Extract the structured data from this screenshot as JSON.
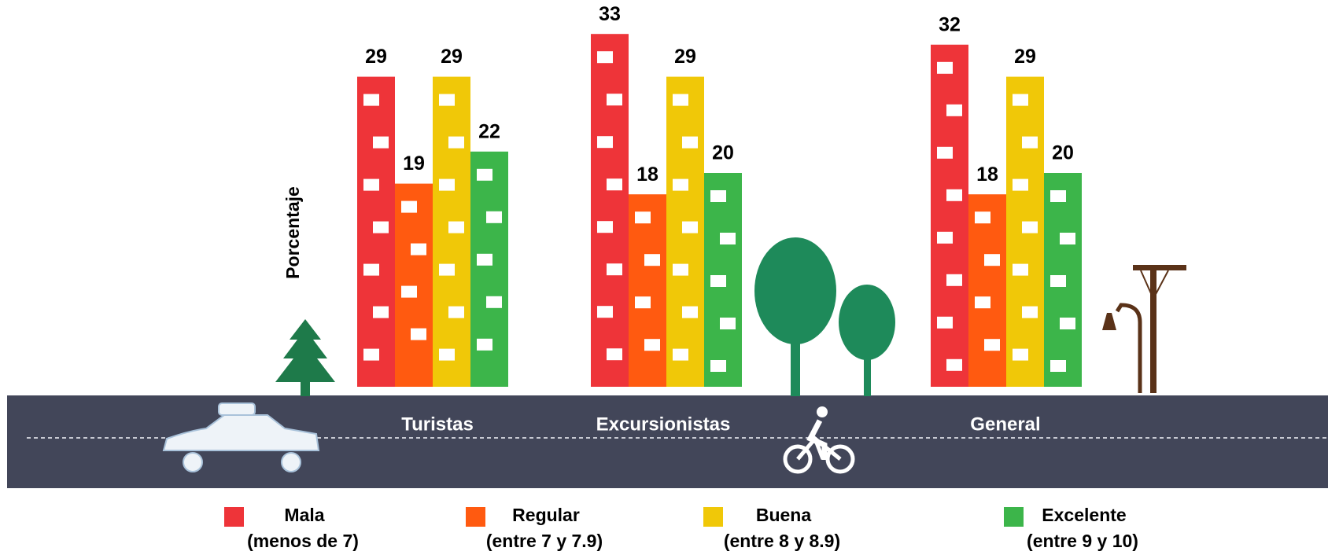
{
  "chart_data": {
    "type": "bar",
    "y_label": "Porcentaje",
    "categories": [
      "Turistas",
      "Excursionistas",
      "General"
    ],
    "series": [
      {
        "name": "Mala",
        "description": "(menos de 7)",
        "color": "#ee3439",
        "values": [
          29,
          33,
          32
        ]
      },
      {
        "name": "Regular",
        "description": "(entre 7 y 7.9)",
        "color": "#ff5a10",
        "values": [
          19,
          18,
          18
        ]
      },
      {
        "name": "Buena",
        "description": "(entre 8 y 8.9)",
        "color": "#f0c808",
        "values": [
          29,
          29,
          29
        ]
      },
      {
        "name": "Excelente",
        "description": "(entre 9 y 10)",
        "color": "#3cb54a",
        "values": [
          22,
          20,
          20
        ]
      }
    ]
  }
}
